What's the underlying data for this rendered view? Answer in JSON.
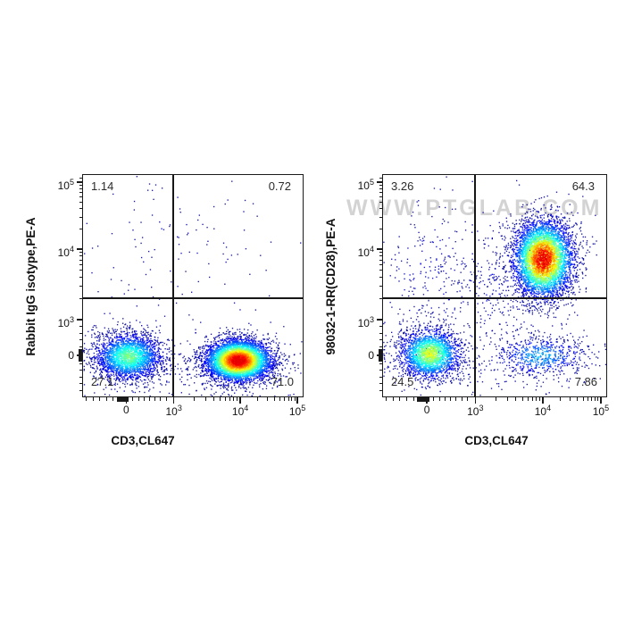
{
  "figure": {
    "background": "#ffffff"
  },
  "watermark": {
    "text": "WWW.PTGLAB.COM",
    "color": "#cccccc"
  },
  "chart_data": [
    {
      "type": "scatter",
      "subtype": "flow-cytometry-pseudocolor-density",
      "xlabel": "CD3,CL647",
      "ylabel": "Rabbit IgG isotype,PE-A",
      "x_ticks": [
        {
          "label": "0",
          "f": 0.195
        },
        {
          "label": "10",
          "exp": "3",
          "f": 0.41
        },
        {
          "label": "10",
          "exp": "4",
          "f": 0.71
        },
        {
          "label": "10",
          "exp": "5",
          "f": 0.968
        }
      ],
      "y_ticks": [
        {
          "label": "10",
          "exp": "5",
          "f": 0.032
        },
        {
          "label": "10",
          "exp": "4",
          "f": 0.332
        },
        {
          "label": "10",
          "exp": "3",
          "f": 0.648
        },
        {
          "label": "0",
          "f": 0.808
        }
      ],
      "gate": {
        "x_f": 0.41,
        "y_f": 0.558
      },
      "quadrants": {
        "top_left": "1.14",
        "top_right": "0.72",
        "bottom_left": "27.1",
        "bottom_right": "71.0"
      },
      "clusters": [
        {
          "label": "CD3-negative PE-negative population",
          "fx": 0.205,
          "fy": 0.818,
          "sx": 0.08,
          "sy": 0.054,
          "n": 2600,
          "peak": 0.52,
          "speckle": 0.12
        },
        {
          "label": "CD3-positive PE-negative population",
          "fx": 0.705,
          "fy": 0.836,
          "sx": 0.077,
          "sy": 0.048,
          "n": 5100,
          "peak": 1.0,
          "speckle": 0.08
        },
        {
          "label": "sparse upper scatter",
          "fx": 0.42,
          "fy": 0.32,
          "sx": 0.26,
          "sy": 0.17,
          "n": 120,
          "peak": 0.05,
          "speckle": 0.5
        },
        {
          "label": "sparse lower scatter",
          "fx": 0.45,
          "fy": 0.84,
          "sx": 0.38,
          "sy": 0.1,
          "n": 260,
          "peak": 0.045,
          "speckle": 0.5
        }
      ]
    },
    {
      "type": "scatter",
      "subtype": "flow-cytometry-pseudocolor-density",
      "xlabel": "CD3,CL647",
      "ylabel": "98032-1-RR(CD28),PE-A",
      "x_ticks": [
        {
          "label": "0",
          "f": 0.195
        },
        {
          "label": "10",
          "exp": "3",
          "f": 0.41
        },
        {
          "label": "10",
          "exp": "4",
          "f": 0.71
        },
        {
          "label": "10",
          "exp": "5",
          "f": 0.968
        }
      ],
      "y_ticks": [
        {
          "label": "10",
          "exp": "5",
          "f": 0.032
        },
        {
          "label": "10",
          "exp": "4",
          "f": 0.332
        },
        {
          "label": "10",
          "exp": "3",
          "f": 0.648
        },
        {
          "label": "0",
          "f": 0.808
        }
      ],
      "gate": {
        "x_f": 0.41,
        "y_f": 0.558
      },
      "quadrants": {
        "top_left": "3.26",
        "top_right": "64.3",
        "bottom_left": "24.5",
        "bottom_right": "7.86"
      },
      "clusters": [
        {
          "label": "CD3-positive CD28-positive population",
          "fx": 0.715,
          "fy": 0.378,
          "sx": 0.068,
          "sy": 0.09,
          "n": 5100,
          "peak": 0.9,
          "speckle": 0.22
        },
        {
          "label": "CD3-negative CD28-negative population",
          "fx": 0.208,
          "fy": 0.806,
          "sx": 0.07,
          "sy": 0.058,
          "n": 2300,
          "peak": 0.62,
          "speckle": 0.14
        },
        {
          "label": "CD3-positive CD28-negative population",
          "fx": 0.7,
          "fy": 0.816,
          "sx": 0.105,
          "sy": 0.047,
          "n": 640,
          "peak": 0.32,
          "speckle": 0.2
        },
        {
          "label": "CD3-negative upper scatter",
          "fx": 0.22,
          "fy": 0.46,
          "sx": 0.13,
          "sy": 0.18,
          "n": 240,
          "peak": 0.09,
          "speckle": 0.5
        },
        {
          "label": "bridge scatter",
          "fx": 0.5,
          "fy": 0.5,
          "sx": 0.14,
          "sy": 0.14,
          "n": 280,
          "peak": 0.08,
          "speckle": 0.5
        },
        {
          "label": "sparse lower scatter",
          "fx": 0.5,
          "fy": 0.86,
          "sx": 0.36,
          "sy": 0.08,
          "n": 200,
          "peak": 0.045,
          "speckle": 0.5
        }
      ]
    }
  ]
}
